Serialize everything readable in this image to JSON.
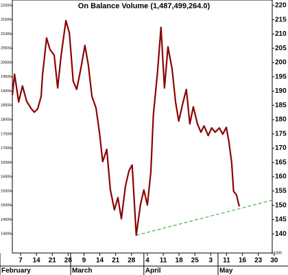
{
  "chart_data": {
    "type": "line",
    "title": "On Balance Volume (1,487,499,264.0)",
    "y_unit": "x1000",
    "x": [
      -2.6,
      -1.9,
      -0.6,
      0.6,
      1.9,
      3.2,
      4.3,
      5.4,
      6.5,
      6.9,
      8.2,
      9.3,
      10.6,
      11.7,
      12.8,
      14.3,
      15.4,
      16.6,
      17.7,
      19.0,
      20.3,
      21.4,
      22.5,
      23.8,
      24.9,
      25.9,
      27.2,
      28.3,
      29.6,
      30.7,
      31.8,
      33.1,
      34.2,
      35.2,
      36.5,
      37.8,
      38.9,
      40.0,
      41.1,
      41.9,
      43.2,
      44.3,
      45.4,
      46.5,
      47.8,
      48.9,
      49.9,
      51.2,
      52.3,
      53.4,
      54.5,
      55.8,
      56.9,
      57.9,
      59.2,
      60.3,
      61.4,
      62.7,
      63.8,
      64.9,
      65.7,
      66.6,
      67.2,
      68.1,
      69.0
    ],
    "series": [
      {
        "color": "#8b0000",
        "values": [
          188.6,
          195.9,
          186.2,
          191.8,
          186.5,
          184.1,
          182.6,
          183.8,
          188.2,
          195.4,
          208.6,
          204.5,
          202.6,
          191.1,
          202.6,
          214.7,
          210.3,
          193.5,
          190.6,
          197.8,
          206.0,
          199.0,
          188.2,
          184.1,
          175.4,
          165.3,
          169.6,
          155.6,
          148.4,
          152.7,
          145.3,
          156.8,
          162.1,
          164.1,
          139.5,
          150.1,
          155.4,
          150.1,
          161.7,
          181.7,
          196.6,
          212.3,
          191.1,
          205.5,
          197.8,
          186.2,
          179.5,
          185.8,
          190.6,
          178.5,
          184.5,
          178.5,
          175.6,
          177.8,
          174.4,
          177.1,
          175.6,
          177.1,
          174.9,
          177.3,
          172.5,
          165.0,
          154.9,
          153.7,
          149.6
        ]
      }
    ],
    "trendline": {
      "color": "#2a9d2a",
      "dashed": true,
      "x": [
        36.5,
        79.4
      ],
      "values": [
        139.5,
        151.8
      ]
    },
    "xlim": [
      -2.6,
      79.4
    ],
    "ylim": [
      133.3,
      221.9
    ],
    "yticks": [
      140,
      145,
      150,
      155,
      160,
      165,
      170,
      175,
      180,
      185,
      190,
      195,
      200,
      205,
      210,
      215,
      220
    ],
    "y2lim": [
      13330,
      22190
    ],
    "y2ticks": [
      14000,
      14500,
      15000,
      15500,
      16000,
      16500,
      17000,
      17500,
      18000,
      18500,
      19000,
      19500,
      20000,
      20500,
      21000,
      21500,
      22000
    ],
    "xticks": [
      {
        "value": 0,
        "label": "7"
      },
      {
        "value": 5,
        "label": "14"
      },
      {
        "value": 10,
        "label": "21"
      },
      {
        "value": 15,
        "label": "28"
      },
      {
        "value": 20,
        "label": "9"
      },
      {
        "value": 25,
        "label": "14"
      },
      {
        "value": 30,
        "label": "21"
      },
      {
        "value": 35,
        "label": "28"
      },
      {
        "value": 40,
        "label": "4"
      },
      {
        "value": 45,
        "label": "11"
      },
      {
        "value": 50,
        "label": "18"
      },
      {
        "value": 55,
        "label": "25"
      },
      {
        "value": 60,
        "label": "3"
      },
      {
        "value": 65,
        "label": "11"
      },
      {
        "value": 70,
        "label": "16"
      },
      {
        "value": 75,
        "label": "23"
      },
      {
        "value": 80,
        "label": "30"
      }
    ],
    "months": [
      {
        "value": -6.5,
        "label": "February"
      },
      {
        "value": 15.8,
        "label": "March"
      },
      {
        "value": 38.9,
        "label": "April"
      },
      {
        "value": 62.3,
        "label": "May"
      }
    ]
  }
}
